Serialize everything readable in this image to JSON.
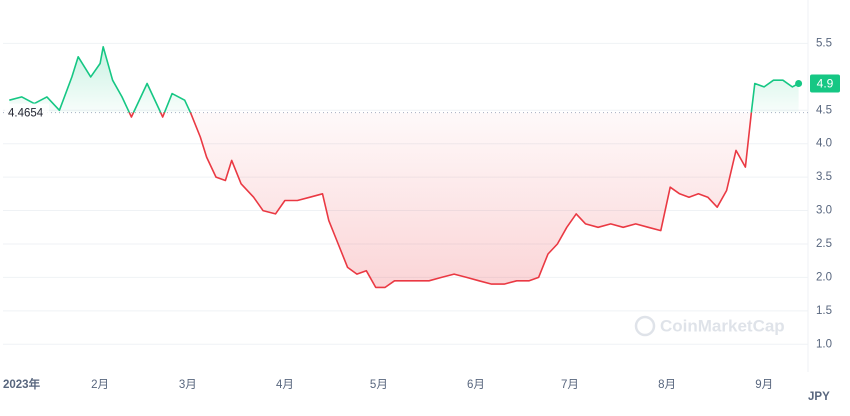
{
  "chart_data": {
    "type": "line",
    "x": [
      2,
      6,
      10,
      14,
      18,
      22,
      24,
      28,
      31,
      32,
      35,
      38,
      41,
      43,
      46,
      49,
      51,
      54,
      58,
      60,
      63,
      65,
      68,
      71,
      73,
      76,
      80,
      83,
      87,
      90,
      94,
      98,
      102,
      104,
      107,
      110,
      113,
      116,
      119,
      122,
      125,
      128,
      132,
      136,
      140,
      144,
      148,
      152,
      156,
      160,
      164,
      168,
      171,
      174,
      177,
      180,
      183,
      186,
      190,
      194,
      198,
      202,
      206,
      210,
      213,
      216,
      219,
      222,
      225,
      228,
      231,
      234,
      237,
      239,
      240,
      243,
      246,
      249,
      252,
      254
    ],
    "series": [
      {
        "name": "JPY",
        "values": [
          4.65,
          4.7,
          4.6,
          4.7,
          4.5,
          5.0,
          5.3,
          5.0,
          5.2,
          5.45,
          4.95,
          4.7,
          4.4,
          4.6,
          4.9,
          4.6,
          4.4,
          4.75,
          4.65,
          4.45,
          4.1,
          3.8,
          3.5,
          3.45,
          3.75,
          3.4,
          3.2,
          3.0,
          2.95,
          3.15,
          3.15,
          3.2,
          3.25,
          2.85,
          2.5,
          2.15,
          2.05,
          2.1,
          1.85,
          1.85,
          1.95,
          1.95,
          1.95,
          1.95,
          2.0,
          2.05,
          2.0,
          1.95,
          1.9,
          1.9,
          1.95,
          1.95,
          2.0,
          2.35,
          2.5,
          2.75,
          2.95,
          2.8,
          2.75,
          2.8,
          2.75,
          2.8,
          2.75,
          2.7,
          3.35,
          3.25,
          3.2,
          3.25,
          3.2,
          3.05,
          3.3,
          3.9,
          3.65,
          4.5,
          4.9,
          4.85,
          4.95,
          4.95,
          4.85,
          4.9
        ]
      }
    ],
    "up_color": "#16c784",
    "down_color": "#ea3943",
    "baseline": 4.4654,
    "current_value": 4.9,
    "xlim": [
      0,
      257
    ],
    "xticks": [
      {
        "value": 0,
        "label": "2023年"
      },
      {
        "value": 31,
        "label": "2月"
      },
      {
        "value": 59,
        "label": "3月"
      },
      {
        "value": 90,
        "label": "4月"
      },
      {
        "value": 120,
        "label": "5月"
      },
      {
        "value": 151,
        "label": "6月"
      },
      {
        "value": 181,
        "label": "7月"
      },
      {
        "value": 212,
        "label": "8月"
      },
      {
        "value": 243,
        "label": "9月"
      }
    ],
    "ylim": [
      0.6,
      6.0
    ],
    "yticks": [
      {
        "value": 1,
        "label": "1.0"
      },
      1.5,
      {
        "value": 2,
        "label": "2.0"
      },
      2.5,
      {
        "value": 3,
        "label": "3.0"
      },
      3.5,
      {
        "value": 4,
        "label": "4.0"
      },
      4.5,
      5.5
    ],
    "currency": "JPY",
    "watermark": "CoinMarketCap",
    "grid": true
  }
}
